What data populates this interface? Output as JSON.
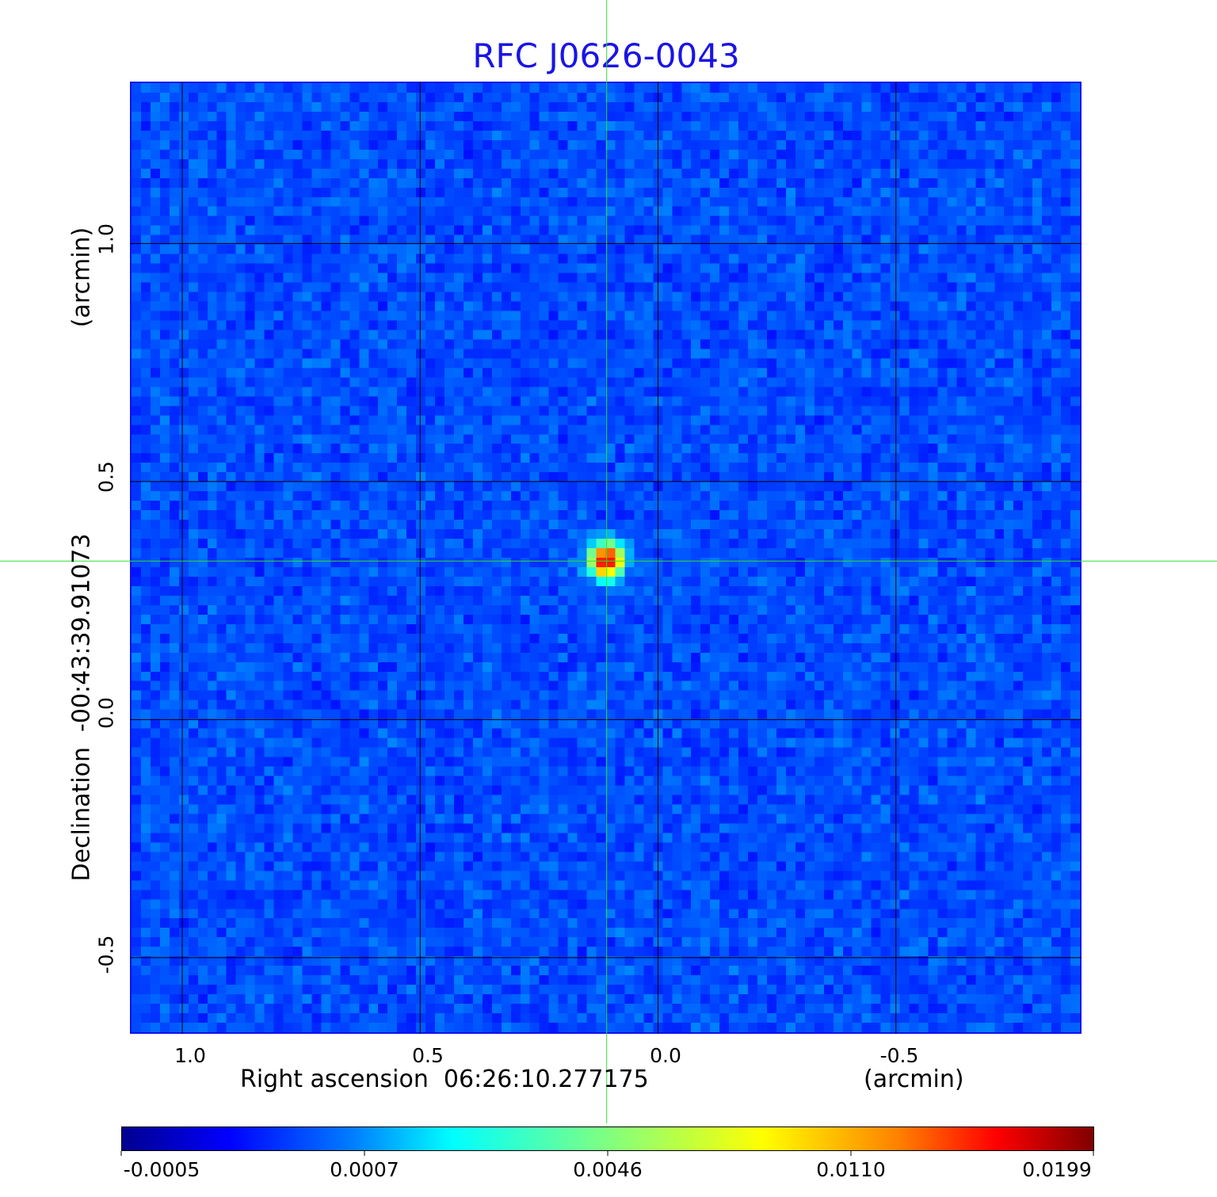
{
  "chart_data": {
    "type": "heatmap",
    "title": "RFC J0626-0043",
    "xlabel": "Right ascension  06:26:10.277175",
    "x_unit": "(arcmin)",
    "ylabel": "Declination  -00:43:39.91073",
    "y_unit": "(arcmin)",
    "x_ticks": [
      "1.0",
      "0.5",
      "0.0",
      "-0.5"
    ],
    "y_ticks": [
      "1.0",
      "0.5",
      "0.0",
      "-0.5"
    ],
    "x_tick_values": [
      1.0,
      0.5,
      0.0,
      -0.5
    ],
    "y_tick_values": [
      1.0,
      0.5,
      0.0,
      -0.5
    ],
    "xlim": [
      1.11,
      -0.89
    ],
    "ylim": [
      -0.66,
      1.34
    ],
    "grid": true,
    "crosshair": {
      "x": 0.108,
      "y": 0.333,
      "color": "#33dd33"
    },
    "source_peak": {
      "x": 0.108,
      "y": 0.335,
      "value": 0.0199
    },
    "colormap": "jet",
    "colorbar": {
      "position": "bottom",
      "tick_labels": [
        "-0.0005",
        "0.0007",
        "0.0046",
        "0.0110",
        "0.0199"
      ],
      "range": [
        -0.0005,
        0.0199
      ]
    }
  }
}
